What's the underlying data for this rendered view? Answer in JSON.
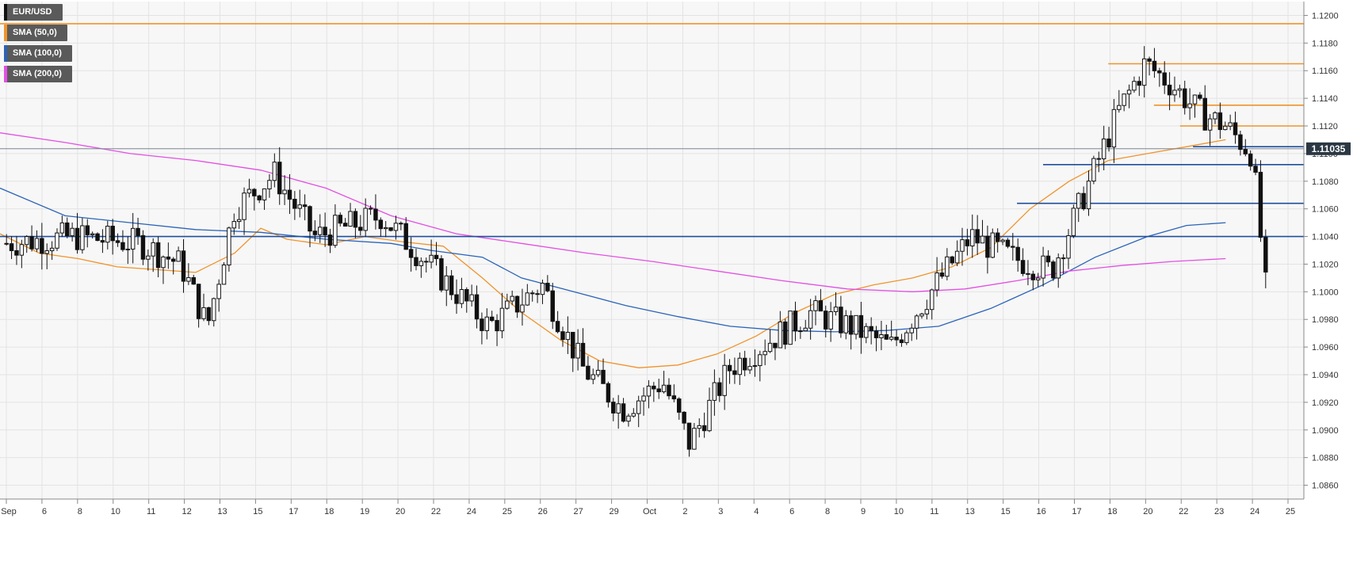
{
  "colors": {
    "background": "#f7f7f7",
    "grid": "#e3e3e3",
    "candle_up": "#ffffff",
    "candle_down": "#111111",
    "outline": "#111111",
    "sma50": "#f0932b",
    "sma100": "#2b63b8",
    "sma200": "#e34fe3",
    "resistance": "#f0932b",
    "support": "#1f4e9c",
    "price_line": "#7a8590",
    "price_tag": "#2b3843"
  },
  "legend": [
    {
      "label": "EUR/USD",
      "color": "#111111"
    },
    {
      "label": "SMA (50,0)",
      "color": "#f0932b"
    },
    {
      "label": "SMA (100,0)",
      "color": "#2b63b8"
    },
    {
      "label": "SMA (200,0)",
      "color": "#e34fe3"
    }
  ],
  "chart_data": {
    "type": "candlestick",
    "symbol": "EUR/USD",
    "ylim": [
      1.085,
      1.121
    ],
    "y_ticks": [
      "1.1200",
      "1.1180",
      "1.1160",
      "1.1140",
      "1.1120",
      "1.1100",
      "1.1080",
      "1.1060",
      "1.1040",
      "1.1020",
      "1.1000",
      "1.0980",
      "1.0960",
      "1.0940",
      "1.0920",
      "1.0900",
      "1.0880",
      "1.0860"
    ],
    "x_labels": [
      "Sep",
      "6",
      "8",
      "10",
      "11",
      "12",
      "13",
      "15",
      "17",
      "18",
      "19",
      "20",
      "22",
      "24",
      "25",
      "26",
      "27",
      "29",
      "Oct",
      "2",
      "3",
      "4",
      "6",
      "8",
      "9",
      "10",
      "11",
      "13",
      "15",
      "16",
      "17",
      "18",
      "20",
      "22",
      "23",
      "24",
      "25"
    ],
    "last_price": "1.11035",
    "last_price_value": 1.11035,
    "horizontal_levels": [
      {
        "kind": "resistance",
        "value": 1.1194,
        "start": 0
      },
      {
        "kind": "resistance",
        "value": 1.1165,
        "start": 0.85
      },
      {
        "kind": "resistance",
        "value": 1.1135,
        "start": 0.885
      },
      {
        "kind": "resistance",
        "value": 1.112,
        "start": 0.905
      },
      {
        "kind": "support",
        "value": 1.1105,
        "start": 0.915
      },
      {
        "kind": "support",
        "value": 1.1092,
        "start": 0.8
      },
      {
        "kind": "support",
        "value": 1.1064,
        "start": 0.78
      },
      {
        "kind": "support",
        "value": 1.104,
        "start": 0
      }
    ],
    "series": [
      {
        "name": "SMA (50,0)",
        "key": "sma50",
        "x": [
          0,
          0.03,
          0.06,
          0.09,
          0.12,
          0.15,
          0.18,
          0.2,
          0.22,
          0.25,
          0.28,
          0.31,
          0.34,
          0.37,
          0.4,
          0.43,
          0.46,
          0.49,
          0.52,
          0.55,
          0.58,
          0.61,
          0.64,
          0.67,
          0.7,
          0.73,
          0.76,
          0.79,
          0.82,
          0.85,
          0.88,
          0.91,
          0.94
        ],
        "values": [
          1.1042,
          1.1028,
          1.1024,
          1.1018,
          1.1016,
          1.1014,
          1.1028,
          1.1046,
          1.1038,
          1.1034,
          1.104,
          1.1036,
          1.1033,
          1.101,
          1.0985,
          1.0965,
          1.095,
          1.0945,
          1.0947,
          1.0955,
          1.0968,
          1.0985,
          1.0998,
          1.1005,
          1.101,
          1.1018,
          1.1032,
          1.106,
          1.108,
          1.1095,
          1.11,
          1.1105,
          1.111
        ]
      },
      {
        "name": "SMA (100,0)",
        "key": "sma100",
        "x": [
          0,
          0.05,
          0.1,
          0.15,
          0.2,
          0.25,
          0.3,
          0.33,
          0.37,
          0.4,
          0.44,
          0.48,
          0.52,
          0.56,
          0.6,
          0.64,
          0.68,
          0.72,
          0.76,
          0.8,
          0.84,
          0.88,
          0.91,
          0.94
        ],
        "values": [
          1.1075,
          1.1055,
          1.105,
          1.1045,
          1.1043,
          1.1038,
          1.1035,
          1.103,
          1.1025,
          1.101,
          1.1,
          1.099,
          1.0982,
          1.0975,
          1.0972,
          1.0971,
          1.0972,
          1.0975,
          1.0988,
          1.1005,
          1.1025,
          1.104,
          1.1048,
          1.105
        ]
      },
      {
        "name": "SMA (200,0)",
        "key": "sma200",
        "x": [
          0,
          0.05,
          0.1,
          0.15,
          0.2,
          0.25,
          0.3,
          0.35,
          0.4,
          0.45,
          0.5,
          0.55,
          0.6,
          0.65,
          0.7,
          0.74,
          0.78,
          0.82,
          0.86,
          0.9,
          0.94
        ],
        "values": [
          1.1115,
          1.1108,
          1.11,
          1.1095,
          1.1088,
          1.1075,
          1.1055,
          1.1042,
          1.1035,
          1.1028,
          1.1022,
          1.1015,
          1.1008,
          1.1002,
          1.1,
          1.1002,
          1.1008,
          1.1015,
          1.1019,
          1.1022,
          1.1024
        ]
      }
    ]
  }
}
